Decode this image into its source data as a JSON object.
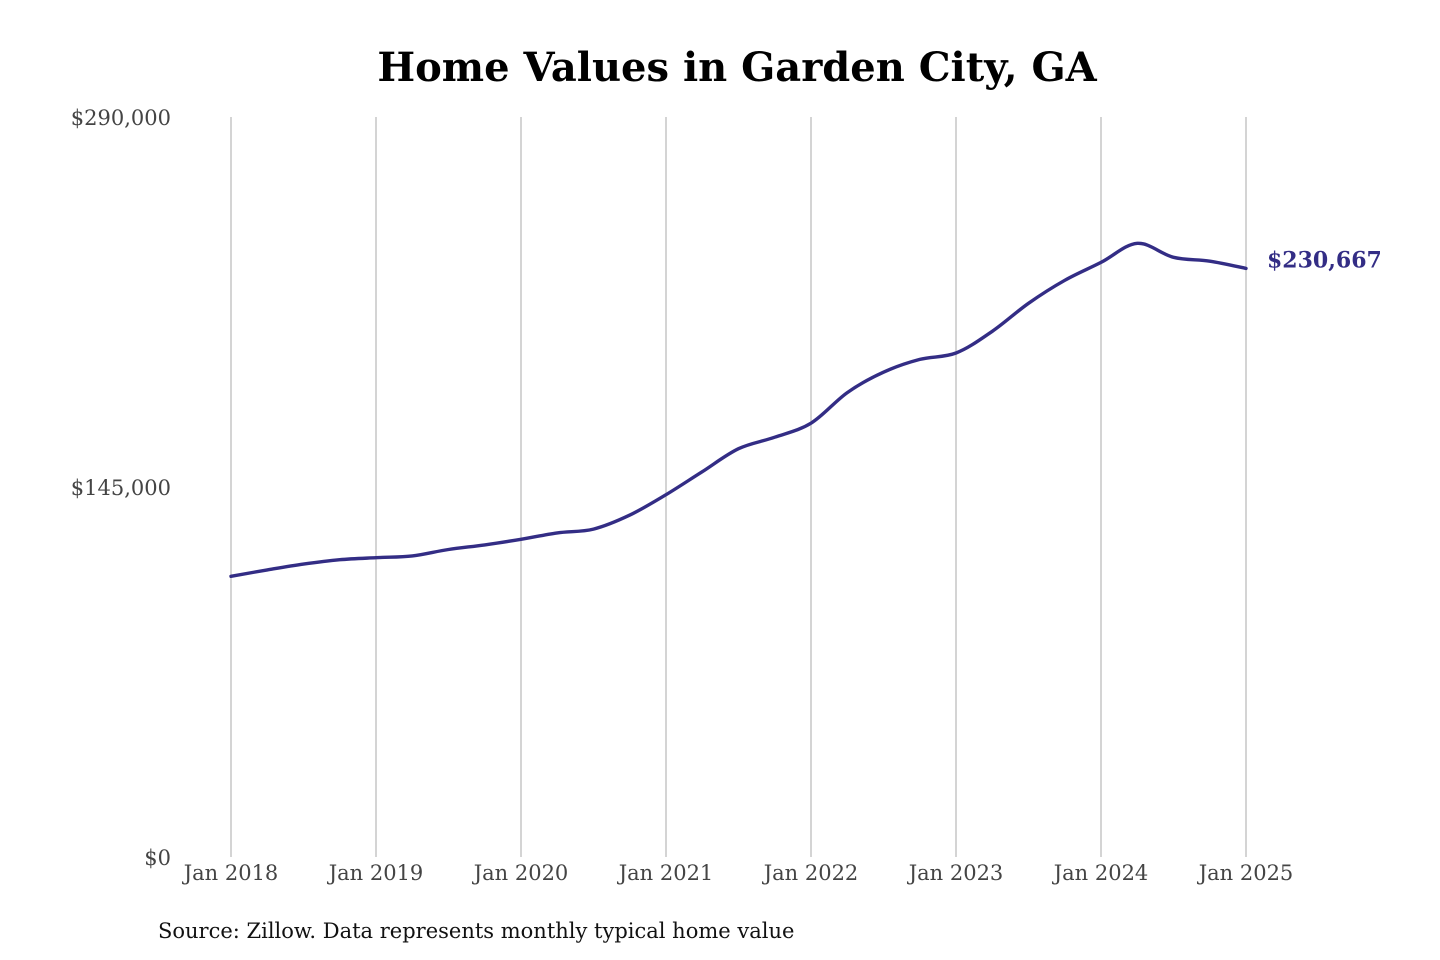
{
  "colors": {
    "series": "#332d85",
    "grid": "#b8b8b8",
    "text": "#444444"
  },
  "chart_data": {
    "type": "line",
    "title": "Home Values in Garden City, GA",
    "xlabel": "",
    "ylabel": "",
    "ylim": [
      0,
      290000
    ],
    "y_ticks": [
      0,
      145000,
      290000
    ],
    "y_tick_labels": [
      "$0",
      "$145,000",
      "$290,000"
    ],
    "x_tick_labels": [
      "Jan 2018",
      "Jan 2019",
      "Jan 2020",
      "Jan 2021",
      "Jan 2022",
      "Jan 2023",
      "Jan 2024",
      "Jan 2025"
    ],
    "x_ticks": [
      "2018-01",
      "2019-01",
      "2020-01",
      "2021-01",
      "2022-01",
      "2023-01",
      "2024-01",
      "2025-01"
    ],
    "grid": "vertical",
    "end_label": "$230,667",
    "source": "Source: Zillow. Data represents monthly typical home value",
    "series": [
      {
        "x": [
          "2018-01",
          "2018-04",
          "2018-07",
          "2018-10",
          "2019-01",
          "2019-04",
          "2019-07",
          "2019-10",
          "2020-01",
          "2020-04",
          "2020-07",
          "2020-10",
          "2021-01",
          "2021-04",
          "2021-07",
          "2021-10",
          "2022-01",
          "2022-04",
          "2022-07",
          "2022-10",
          "2023-01",
          "2023-04",
          "2023-07",
          "2023-10",
          "2024-01",
          "2024-04",
          "2024-07",
          "2024-10",
          "2025-01"
        ],
        "values": [
          110000,
          112500,
          114800,
          116500,
          117300,
          118000,
          120500,
          122300,
          124500,
          127000,
          128500,
          134000,
          142000,
          151000,
          160000,
          164500,
          170000,
          182000,
          190000,
          195000,
          197500,
          206000,
          217000,
          226000,
          233000,
          240500,
          235000,
          233500,
          230667
        ]
      }
    ]
  }
}
